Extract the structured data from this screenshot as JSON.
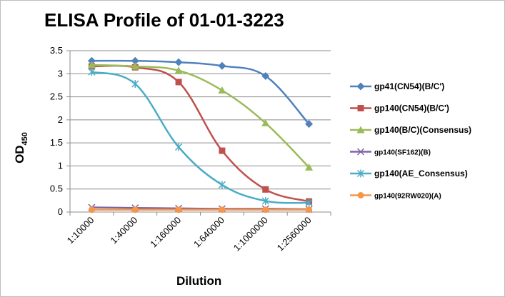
{
  "chart_data": {
    "type": "line",
    "title": "ELISA Profile of 01-01-3223",
    "xlabel": "Dilution",
    "ylabel_main": "OD",
    "ylabel_sub": "450",
    "categories": [
      "1:10000",
      "1:40000",
      "1:160000",
      "1:640000",
      "1:1000000",
      "1:2560000"
    ],
    "ylim": [
      0,
      3.5
    ],
    "yticks": [
      "0",
      "0.5",
      "1",
      "1.5",
      "2",
      "2.5",
      "3",
      "3.5"
    ],
    "grid": true,
    "legend_position": "right",
    "series": [
      {
        "name": "gp41(CN54)(B/C')",
        "color": "#4f81bd",
        "marker": "diamond",
        "values": [
          3.28,
          3.28,
          3.25,
          3.17,
          2.95,
          1.91
        ]
      },
      {
        "name": "gp140(CN54)(B/C')",
        "color": "#c0504d",
        "marker": "square",
        "values": [
          3.16,
          3.14,
          2.82,
          1.33,
          0.49,
          0.23
        ]
      },
      {
        "name": "gp140(B/C)(Consensus)",
        "color": "#9bbb59",
        "marker": "triangle",
        "values": [
          3.19,
          3.16,
          3.07,
          2.64,
          1.93,
          0.97
        ]
      },
      {
        "name": "gp140(SF162)(B)",
        "color": "#8064a2",
        "marker": "x",
        "values": [
          0.1,
          0.09,
          0.08,
          0.07,
          0.07,
          0.06
        ]
      },
      {
        "name": "gp140(AE_Consensus)",
        "color": "#4bacc6",
        "marker": "star",
        "values": [
          3.04,
          2.78,
          1.41,
          0.59,
          0.24,
          0.2
        ]
      },
      {
        "name": "gp140(92RW020)(A)",
        "color": "#f79646",
        "marker": "circle",
        "values": [
          0.05,
          0.05,
          0.05,
          0.05,
          0.05,
          0.05
        ]
      }
    ]
  }
}
